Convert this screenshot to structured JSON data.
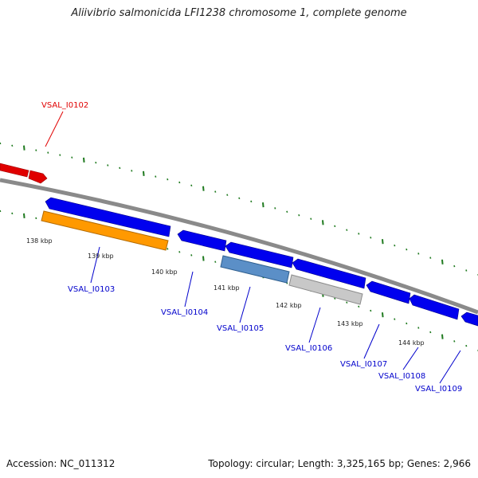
{
  "title": "Aliivibrio salmonicida LFI1238 chromosome 1, complete genome",
  "footer": {
    "accession": "Accession: NC_011312",
    "summary": "Topology: circular; Length: 3,325,165 bp; Genes: 2,966"
  },
  "colors": {
    "backbone": "#8a8a8a",
    "ticks": "#1f7a1f",
    "highlight_label": "#e00000",
    "gene_label": "#0000cc",
    "forward_gene": "#e00000",
    "reverse_gene": "#0000ee",
    "orange_feature": "#ff9900",
    "steelblue_feature": "#5b8fc7",
    "gray_feature": "#c8c8c8"
  },
  "scale_labels": [
    "138 kbp",
    "139 kbp",
    "140 kbp",
    "141 kbp",
    "142 kbp",
    "143 kbp",
    "144 kbp"
  ],
  "genes": [
    {
      "id": "VSAL_I0102",
      "highlight": true
    },
    {
      "id": "VSAL_I0103",
      "highlight": false
    },
    {
      "id": "VSAL_I0104",
      "highlight": false
    },
    {
      "id": "VSAL_I0105",
      "highlight": false
    },
    {
      "id": "VSAL_I0106",
      "highlight": false
    },
    {
      "id": "VSAL_I0107",
      "highlight": false
    },
    {
      "id": "VSAL_I0108",
      "highlight": false
    },
    {
      "id": "VSAL_I0109",
      "highlight": false
    }
  ]
}
